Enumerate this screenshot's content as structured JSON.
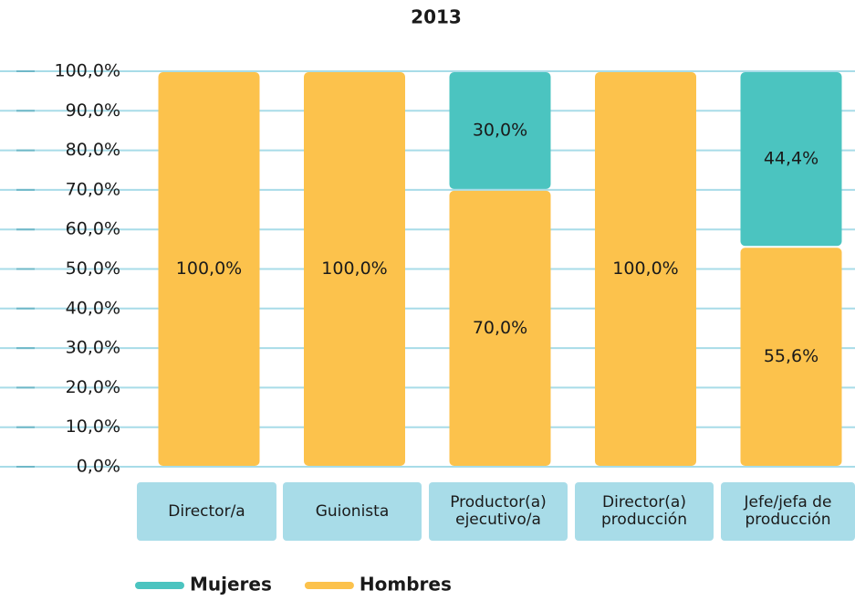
{
  "chart_data": {
    "type": "stacked_bar",
    "title": "2013",
    "categories": [
      "Director/a",
      "Guionista",
      "Productor(a) ejecutivo/a",
      "Director(a) producción",
      "Jefe/jefa de producción"
    ],
    "series": [
      {
        "name": "Mujeres",
        "color": "#4bc4c0",
        "values": [
          0,
          0,
          30,
          0,
          44.4
        ],
        "value_labels": [
          null,
          null,
          "30,0%",
          null,
          "44,4%"
        ]
      },
      {
        "name": "Hombres",
        "color": "#fcc24c",
        "values": [
          100,
          100,
          70,
          100,
          55.6
        ],
        "value_labels": [
          "100,0%",
          "100,0%",
          "70,0%",
          "100,0%",
          "55,6%"
        ]
      }
    ],
    "ylim": [
      0,
      100
    ],
    "yticks": [
      {
        "value": 0,
        "label": "0,0%"
      },
      {
        "value": 10,
        "label": "10,0%"
      },
      {
        "value": 20,
        "label": "20,0%"
      },
      {
        "value": 30,
        "label": "30,0%"
      },
      {
        "value": 40,
        "label": "40,0%"
      },
      {
        "value": 50,
        "label": "50,0%"
      },
      {
        "value": 60,
        "label": "60,0%"
      },
      {
        "value": 70,
        "label": "70,0%"
      },
      {
        "value": 80,
        "label": "80,0%"
      },
      {
        "value": 90,
        "label": "90,0%"
      },
      {
        "value": 100,
        "label": "100,0%"
      }
    ],
    "grid": true,
    "legend": "bottom"
  }
}
